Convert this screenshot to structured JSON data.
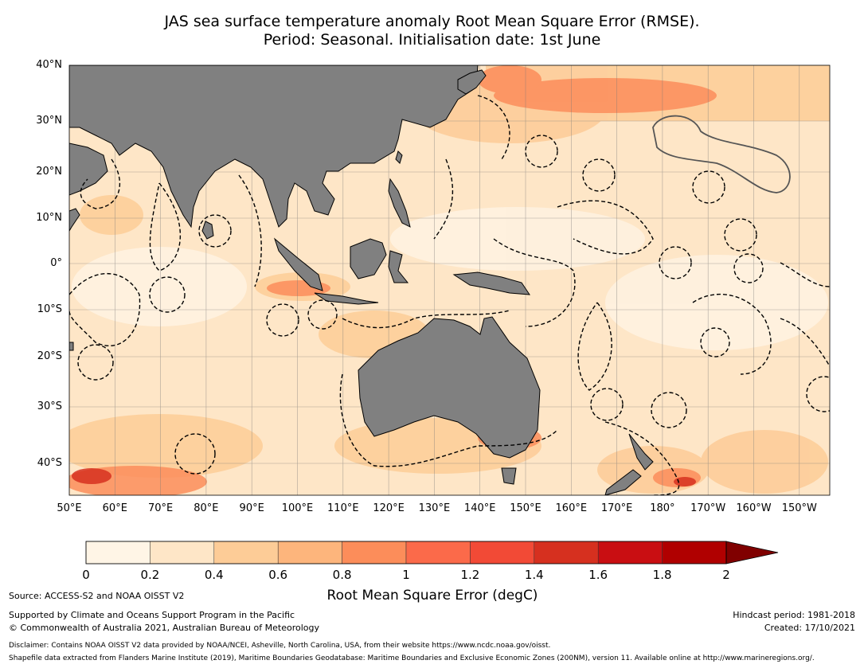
{
  "title": {
    "line1": "JAS sea surface temperature anomaly Root Mean Square Error (RMSE).",
    "line2": "Period: Seasonal. Initialisation date: 1st June"
  },
  "map": {
    "lat_ticks": [
      "40°N",
      "30°N",
      "20°N",
      "10°N",
      "0°",
      "10°S",
      "20°S",
      "30°S",
      "40°S"
    ],
    "lon_ticks": [
      "50°E",
      "60°E",
      "70°E",
      "80°E",
      "90°E",
      "100°E",
      "110°E",
      "120°E",
      "130°E",
      "140°E",
      "150°E",
      "160°E",
      "170°E",
      "180°",
      "170°W",
      "160°W",
      "150°W"
    ],
    "land_color": "#808080",
    "ocean_base_color": "#fee6c7"
  },
  "colorbar": {
    "ticks": [
      "0",
      "0.2",
      "0.4",
      "0.6",
      "0.8",
      "1",
      "1.2",
      "1.4",
      "1.6",
      "1.8",
      "2"
    ],
    "colors": [
      "#fff5e6",
      "#fee6c7",
      "#fdcc97",
      "#fdb57c",
      "#fc8d5a",
      "#fb6a4a",
      "#f24a36",
      "#d6301f",
      "#c90e12",
      "#b00000"
    ],
    "extend_color": "#800000",
    "label": "Root Mean Square Error (degC)"
  },
  "footer": {
    "source": "Source: ACCESS-S2 and NOAA OISST V2",
    "support": "Supported by Climate and Oceans Support Program in the Pacific",
    "copyright": "© Commonwealth of Australia 2021, Australian Bureau of Meteorology",
    "hindcast": "Hindcast period: 1981-2018",
    "created": "Created: 17/10/2021",
    "disclaimer": "Disclaimer: Contains NOAA OISST V2 data provided by NOAA/NCEI, Asheville, North Carolina, USA, from their website https://www.ncdc.noaa.gov/oisst.",
    "shapefile": "Shapefile data extracted from Flanders Marine Institute (2019), Maritime Boundaries Geodatabase: Maritime Boundaries and Exclusive Economic Zones (200NM), version 11. Available online at http://www.marineregions.org/."
  }
}
